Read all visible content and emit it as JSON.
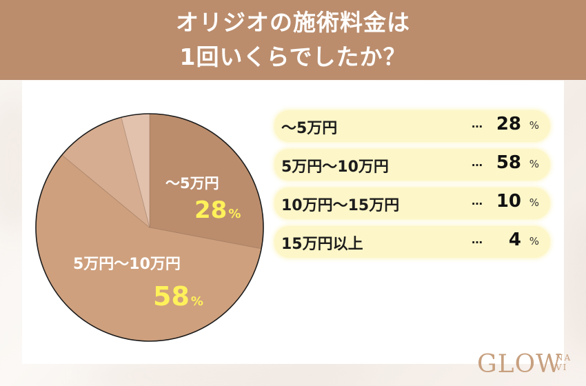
{
  "header": {
    "title_line1": "オリジオの施術料金は",
    "title_line2": "1回いくらでしたか？"
  },
  "colors": {
    "header_bg": "#bb8d6d",
    "slice_1": "#bb8d6d",
    "slice_2": "#cea07e",
    "slice_3": "#d6ad90",
    "slice_4": "#e2c1ad",
    "pct_highlight": "#fef15a",
    "legend_bg": "#fdf6c8"
  },
  "chart_data": {
    "type": "pie",
    "title": "オリジオの施術料金は1回いくらでしたか？",
    "categories": [
      "〜5万円",
      "5万円〜10万円",
      "10万円〜15万円",
      "15万円以上"
    ],
    "values": [
      28,
      58,
      10,
      4
    ],
    "unit": "%",
    "start_angle": "12 o'clock, clockwise",
    "legend_position": "right"
  },
  "pie_labels": [
    {
      "label": "〜5万円",
      "value": "28",
      "unit": "%"
    },
    {
      "label": "5万円〜10万円",
      "value": "58",
      "unit": "%"
    }
  ],
  "legend": [
    {
      "label": "〜5万円",
      "dots": "…",
      "value": "28",
      "unit": "%"
    },
    {
      "label": "5万円〜10万円",
      "dots": "…",
      "value": "58",
      "unit": "%"
    },
    {
      "label": "10万円〜15万円",
      "dots": "…",
      "value": "10",
      "unit": "%"
    },
    {
      "label": "15万円以上",
      "dots": "…",
      "value": "4",
      "unit": "%"
    }
  ],
  "logo": {
    "main": "GLOW",
    "sub_top": "NA",
    "sub_bottom": "VI"
  }
}
